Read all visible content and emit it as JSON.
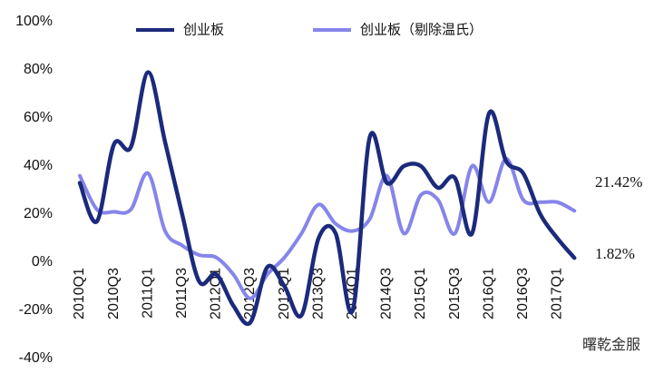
{
  "chart_data": {
    "type": "line",
    "categories": [
      "2010Q1",
      null,
      "2010Q3",
      null,
      "2011Q1",
      null,
      "2011Q3",
      null,
      "2012Q1",
      null,
      "2012Q3",
      null,
      "2013Q1",
      null,
      "2013Q3",
      null,
      "2014Q1",
      null,
      "2014Q3",
      null,
      "2015Q1",
      null,
      "2015Q3",
      null,
      "2016Q1",
      null,
      "2016Q3",
      null,
      "2017Q1",
      null
    ],
    "series": [
      {
        "name": "创业板",
        "color": "#1c2a7c",
        "values": [
          33,
          17,
          49,
          48,
          79,
          50,
          20,
          -8,
          -5,
          -18,
          -25,
          -2,
          -10,
          -22,
          10,
          12,
          -20,
          52,
          33,
          40,
          40,
          31,
          35,
          12,
          62,
          42,
          37,
          20,
          10,
          1.82
        ]
      },
      {
        "name": "创业板（剔除温氏）",
        "color": "#8585ea",
        "values": [
          36,
          22,
          21,
          22,
          37,
          13,
          7,
          3,
          2,
          -5,
          -15,
          -5,
          2,
          12,
          24,
          16,
          13,
          18,
          36,
          12,
          28,
          26,
          12,
          40,
          25,
          43,
          26,
          25,
          25,
          21.42
        ]
      }
    ],
    "annotations": [
      "21.42%",
      "1.82%"
    ],
    "watermark": "曙乾金服",
    "ylim": [
      -40,
      100
    ],
    "yticks": [
      {
        "value": -40,
        "label": "-40%"
      },
      {
        "value": -20,
        "label": "-20%"
      },
      {
        "value": 0,
        "label": "0%"
      },
      {
        "value": 20,
        "label": "20%"
      },
      {
        "value": 40,
        "label": "40%"
      },
      {
        "value": 60,
        "label": "60%"
      },
      {
        "value": 80,
        "label": "80%"
      },
      {
        "value": 100,
        "label": "100%"
      }
    ],
    "grid": false
  }
}
